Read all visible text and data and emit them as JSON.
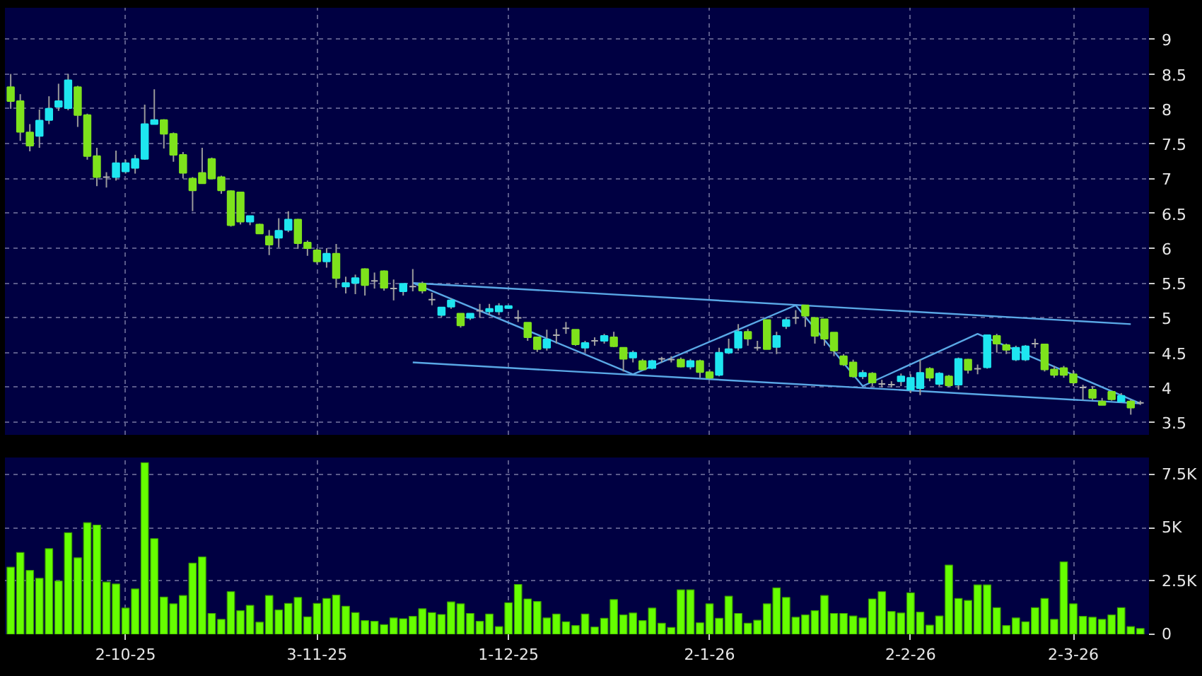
{
  "chart_data": [
    {
      "type": "candlestick",
      "categories": [
        null,
        null,
        null,
        null,
        null,
        null,
        null,
        null,
        null,
        null,
        null,
        null,
        null,
        null,
        null,
        null,
        null,
        null,
        null,
        null,
        null,
        null,
        null,
        null,
        null,
        null,
        null,
        null,
        null,
        null,
        null,
        null,
        null,
        null,
        null,
        null,
        null,
        null,
        null,
        null,
        null,
        null,
        null,
        null,
        null,
        null,
        null,
        null,
        null,
        null,
        null,
        null,
        null,
        null,
        null,
        null,
        null,
        null,
        null,
        null,
        null,
        null,
        null,
        null,
        null,
        null,
        null,
        null,
        null,
        null,
        null,
        null,
        null,
        null,
        null,
        null,
        null,
        null,
        null,
        null,
        null,
        null,
        null,
        null,
        null,
        null,
        null,
        null,
        null,
        null,
        null,
        null,
        null,
        null,
        null,
        null,
        null,
        null,
        null,
        null,
        null,
        null,
        null,
        null,
        null,
        null,
        null,
        null,
        null,
        null,
        null,
        null,
        null,
        null,
        null,
        null,
        null,
        null,
        null
      ],
      "ohlc": [
        [
          8.31,
          8.5,
          8.0,
          8.11
        ],
        [
          8.11,
          8.21,
          7.54,
          7.67
        ],
        [
          7.66,
          7.78,
          7.39,
          7.47
        ],
        [
          7.61,
          7.99,
          7.44,
          7.83
        ],
        [
          7.84,
          8.18,
          7.78,
          8.0
        ],
        [
          8.03,
          8.36,
          7.97,
          8.11
        ],
        [
          8.01,
          8.5,
          7.98,
          8.41
        ],
        [
          8.31,
          8.33,
          7.74,
          7.91
        ],
        [
          7.91,
          7.93,
          7.27,
          7.32
        ],
        [
          7.32,
          7.44,
          6.89,
          7.02
        ],
        [
          7.02,
          7.09,
          6.87,
          7.02
        ],
        [
          7.02,
          7.4,
          6.97,
          7.22
        ],
        [
          7.1,
          7.27,
          7.07,
          7.22
        ],
        [
          7.15,
          7.34,
          7.07,
          7.28
        ],
        [
          7.28,
          8.06,
          7.27,
          7.78
        ],
        [
          7.78,
          8.28,
          7.78,
          7.84
        ],
        [
          7.84,
          7.85,
          7.43,
          7.64
        ],
        [
          7.64,
          7.66,
          7.24,
          7.34
        ],
        [
          7.34,
          7.38,
          7.0,
          7.08
        ],
        [
          7.0,
          7.02,
          6.53,
          6.83
        ],
        [
          7.08,
          7.44,
          6.93,
          6.93
        ],
        [
          7.28,
          7.3,
          7.0,
          7.0
        ],
        [
          7.02,
          7.04,
          6.78,
          6.83
        ],
        [
          6.82,
          6.83,
          6.31,
          6.33
        ],
        [
          6.8,
          6.81,
          6.34,
          6.38
        ],
        [
          6.38,
          6.46,
          6.33,
          6.46
        ],
        [
          6.34,
          6.35,
          6.21,
          6.21
        ],
        [
          6.17,
          6.26,
          5.9,
          6.05
        ],
        [
          6.15,
          6.43,
          6.01,
          6.25
        ],
        [
          6.26,
          6.53,
          6.23,
          6.41
        ],
        [
          6.41,
          6.42,
          5.99,
          6.07
        ],
        [
          6.08,
          6.11,
          5.89,
          6.0
        ],
        [
          5.97,
          6.0,
          5.77,
          5.81
        ],
        [
          5.81,
          6.0,
          5.72,
          5.92
        ],
        [
          5.92,
          6.06,
          5.43,
          5.57
        ],
        [
          5.45,
          5.59,
          5.35,
          5.5
        ],
        [
          5.5,
          5.62,
          5.34,
          5.57
        ],
        [
          5.7,
          5.71,
          5.32,
          5.47
        ],
        [
          5.53,
          5.65,
          5.42,
          5.53
        ],
        [
          5.67,
          5.68,
          5.39,
          5.43
        ],
        [
          5.42,
          5.55,
          5.25,
          5.42
        ],
        [
          5.38,
          5.49,
          5.32,
          5.49
        ],
        [
          5.45,
          5.7,
          5.38,
          5.45
        ],
        [
          5.49,
          5.52,
          5.35,
          5.39
        ],
        [
          5.26,
          5.36,
          5.18,
          5.26
        ],
        [
          5.04,
          5.15,
          5.01,
          5.15
        ],
        [
          5.16,
          5.28,
          5.13,
          5.25
        ],
        [
          5.06,
          5.06,
          4.86,
          4.89
        ],
        [
          5.0,
          5.06,
          4.97,
          5.06
        ],
        [
          5.1,
          5.2,
          5.0,
          5.1
        ],
        [
          5.09,
          5.2,
          5.04,
          5.13
        ],
        [
          5.09,
          5.21,
          5.04,
          5.17
        ],
        [
          5.14,
          5.17,
          5.13,
          5.17
        ],
        [
          5.0,
          5.11,
          4.94,
          5.0
        ],
        [
          4.93,
          4.93,
          4.67,
          4.72
        ],
        [
          4.72,
          4.72,
          4.51,
          4.55
        ],
        [
          4.57,
          4.83,
          4.53,
          4.69
        ],
        [
          4.75,
          4.84,
          4.63,
          4.75
        ],
        [
          4.85,
          4.94,
          4.77,
          4.85
        ],
        [
          4.83,
          4.83,
          4.6,
          4.62
        ],
        [
          4.57,
          4.67,
          4.51,
          4.64
        ],
        [
          4.67,
          4.72,
          4.6,
          4.67
        ],
        [
          4.67,
          4.77,
          4.63,
          4.74
        ],
        [
          4.72,
          4.8,
          4.58,
          4.59
        ],
        [
          4.57,
          4.57,
          4.23,
          4.41
        ],
        [
          4.43,
          4.53,
          4.36,
          4.5
        ],
        [
          4.38,
          4.41,
          4.25,
          4.26
        ],
        [
          4.28,
          4.4,
          4.26,
          4.38
        ],
        [
          4.41,
          4.44,
          4.36,
          4.41
        ],
        [
          4.4,
          4.45,
          4.36,
          4.4
        ],
        [
          4.4,
          4.43,
          4.29,
          4.3
        ],
        [
          4.3,
          4.41,
          4.26,
          4.38
        ],
        [
          4.38,
          4.4,
          4.14,
          4.22
        ],
        [
          4.22,
          4.26,
          4.12,
          4.14
        ],
        [
          4.18,
          4.57,
          4.16,
          4.5
        ],
        [
          4.5,
          4.7,
          4.48,
          4.55
        ],
        [
          4.57,
          4.91,
          4.53,
          4.8
        ],
        [
          4.8,
          4.84,
          4.6,
          4.7
        ],
        [
          4.57,
          4.67,
          4.53,
          4.57
        ],
        [
          4.97,
          4.97,
          4.55,
          4.55
        ],
        [
          4.58,
          4.8,
          4.48,
          4.74
        ],
        [
          4.88,
          5.0,
          4.84,
          4.97
        ],
        [
          5.0,
          5.11,
          4.91,
          5.0
        ],
        [
          5.18,
          5.18,
          4.87,
          5.03
        ],
        [
          5.0,
          5.0,
          4.63,
          4.74
        ],
        [
          4.98,
          4.98,
          4.6,
          4.7
        ],
        [
          4.79,
          4.79,
          4.45,
          4.53
        ],
        [
          4.45,
          4.48,
          4.31,
          4.33
        ],
        [
          4.36,
          4.4,
          4.14,
          4.16
        ],
        [
          4.16,
          4.25,
          4.12,
          4.21
        ],
        [
          4.2,
          4.22,
          4.02,
          4.07
        ],
        [
          4.05,
          4.11,
          4.0,
          4.05
        ],
        [
          4.04,
          4.09,
          4.0,
          4.04
        ],
        [
          4.09,
          4.2,
          4.02,
          4.16
        ],
        [
          3.97,
          4.19,
          3.92,
          4.14
        ],
        [
          3.99,
          4.4,
          3.89,
          4.21
        ],
        [
          4.27,
          4.29,
          4.09,
          4.14
        ],
        [
          4.05,
          4.22,
          4.02,
          4.2
        ],
        [
          4.16,
          4.18,
          4.0,
          4.03
        ],
        [
          4.04,
          4.43,
          3.97,
          4.41
        ],
        [
          4.4,
          4.41,
          4.2,
          4.25
        ],
        [
          4.27,
          4.33,
          4.19,
          4.27
        ],
        [
          4.29,
          4.75,
          4.27,
          4.75
        ],
        [
          4.74,
          4.77,
          4.5,
          4.63
        ],
        [
          4.61,
          4.63,
          4.48,
          4.54
        ],
        [
          4.4,
          4.6,
          4.38,
          4.57
        ],
        [
          4.4,
          4.61,
          4.38,
          4.59
        ],
        [
          4.63,
          4.7,
          4.57,
          4.63
        ],
        [
          4.62,
          4.62,
          4.23,
          4.26
        ],
        [
          4.26,
          4.31,
          4.14,
          4.18
        ],
        [
          4.28,
          4.31,
          4.14,
          4.18
        ],
        [
          4.19,
          4.25,
          4.02,
          4.07
        ],
        [
          4.0,
          4.04,
          3.82,
          4.0
        ],
        [
          3.97,
          4.02,
          3.82,
          3.85
        ],
        [
          3.8,
          3.85,
          3.75,
          3.75
        ],
        [
          3.94,
          3.95,
          3.81,
          3.83
        ],
        [
          3.8,
          3.92,
          3.78,
          3.88
        ],
        [
          3.8,
          3.83,
          3.61,
          3.71
        ],
        [
          3.78,
          3.81,
          3.75,
          3.78
        ]
      ],
      "colors": [
        "#7ee21c",
        "#7ee21c",
        "#7ee21c",
        "#1ee6f0",
        "#1ee6f0",
        "#1ee6f0",
        "#1ee6f0",
        "#7ee21c",
        "#7ee21c",
        "#7ee21c",
        "#b0b0b0",
        "#1ee6f0",
        "#1ee6f0",
        "#1ee6f0",
        "#1ee6f0",
        "#1ee6f0",
        "#7ee21c",
        "#7ee21c",
        "#7ee21c",
        "#7ee21c",
        "#7ee21c",
        "#7ee21c",
        "#7ee21c",
        "#7ee21c",
        "#7ee21c",
        "#1ee6f0",
        "#7ee21c",
        "#7ee21c",
        "#1ee6f0",
        "#1ee6f0",
        "#7ee21c",
        "#7ee21c",
        "#7ee21c",
        "#1ee6f0",
        "#7ee21c",
        "#1ee6f0",
        "#1ee6f0",
        "#7ee21c",
        "#b0b0b0",
        "#7ee21c",
        "#b0b0b0",
        "#1ee6f0",
        "#b0b0b0",
        "#7ee21c",
        "#b0b0b0",
        "#1ee6f0",
        "#1ee6f0",
        "#7ee21c",
        "#1ee6f0",
        "#b0b0b0",
        "#1ee6f0",
        "#1ee6f0",
        "#1ee6f0",
        "#b0b0b0",
        "#7ee21c",
        "#7ee21c",
        "#1ee6f0",
        "#b0b0b0",
        "#b0b0b0",
        "#7ee21c",
        "#1ee6f0",
        "#b0b0b0",
        "#1ee6f0",
        "#7ee21c",
        "#7ee21c",
        "#1ee6f0",
        "#7ee21c",
        "#1ee6f0",
        "#b0b0b0",
        "#b0b0b0",
        "#7ee21c",
        "#1ee6f0",
        "#7ee21c",
        "#7ee21c",
        "#1ee6f0",
        "#1ee6f0",
        "#1ee6f0",
        "#7ee21c",
        "#b0b0b0",
        "#7ee21c",
        "#1ee6f0",
        "#1ee6f0",
        "#b0b0b0",
        "#7ee21c",
        "#7ee21c",
        "#7ee21c",
        "#7ee21c",
        "#7ee21c",
        "#7ee21c",
        "#1ee6f0",
        "#7ee21c",
        "#b0b0b0",
        "#b0b0b0",
        "#1ee6f0",
        "#1ee6f0",
        "#1ee6f0",
        "#7ee21c",
        "#1ee6f0",
        "#7ee21c",
        "#1ee6f0",
        "#7ee21c",
        "#b0b0b0",
        "#1ee6f0",
        "#7ee21c",
        "#7ee21c",
        "#1ee6f0",
        "#1ee6f0",
        "#b0b0b0",
        "#7ee21c",
        "#7ee21c",
        "#7ee21c",
        "#7ee21c",
        "#b0b0b0",
        "#7ee21c",
        "#7ee21c",
        "#7ee21c",
        "#1ee6f0",
        "#7ee21c",
        "#b0b0b0"
      ],
      "series": [
        {
          "type": "line",
          "color": "#5aa8e6",
          "values": [
            null,
            null,
            null,
            null,
            null,
            null,
            null,
            null,
            null,
            null,
            null,
            null,
            null,
            null,
            null,
            null,
            null,
            null,
            null,
            null,
            null,
            null,
            null,
            null,
            null,
            null,
            null,
            null,
            null,
            null,
            null,
            null,
            null,
            null,
            null,
            null,
            null,
            null,
            null,
            null,
            null,
            null,
            5.5,
            null,
            null,
            null,
            null,
            null,
            null,
            null,
            null,
            null,
            null,
            null,
            null,
            null,
            null,
            null,
            null,
            null,
            null,
            null,
            null,
            null,
            null,
            null,
            null,
            null,
            null,
            null,
            null,
            null,
            null,
            null,
            null,
            null,
            null,
            null,
            null,
            null,
            null,
            null,
            null,
            null,
            null,
            null,
            null,
            null,
            null,
            null,
            null,
            null,
            null,
            null,
            null,
            null,
            null,
            null,
            null,
            null,
            null,
            null,
            null,
            null,
            null,
            null,
            null,
            null,
            null,
            null,
            null,
            null,
            null,
            null,
            null,
            null,
            null,
            4.91,
            null
          ]
        },
        {
          "type": "line",
          "color": "#5aa8e6",
          "values": [
            null,
            null,
            null,
            null,
            null,
            null,
            null,
            null,
            null,
            null,
            null,
            null,
            null,
            null,
            null,
            null,
            null,
            null,
            null,
            null,
            null,
            null,
            null,
            null,
            null,
            null,
            null,
            null,
            null,
            null,
            null,
            null,
            null,
            null,
            null,
            null,
            null,
            null,
            null,
            null,
            null,
            null,
            4.36,
            null,
            null,
            null,
            null,
            null,
            null,
            null,
            null,
            null,
            null,
            null,
            null,
            null,
            null,
            null,
            null,
            null,
            null,
            null,
            null,
            null,
            null,
            null,
            null,
            null,
            null,
            null,
            null,
            null,
            null,
            null,
            null,
            null,
            null,
            null,
            null,
            null,
            null,
            null,
            null,
            null,
            null,
            null,
            null,
            null,
            null,
            null,
            null,
            null,
            null,
            null,
            null,
            null,
            null,
            null,
            null,
            null,
            null,
            null,
            null,
            null,
            null,
            null,
            null,
            null,
            null,
            null,
            null,
            null,
            null,
            null,
            null,
            null,
            null,
            null,
            3.77
          ]
        },
        {
          "type": "line",
          "color": "#5aa8e6",
          "values": [
            null,
            null,
            null,
            null,
            null,
            null,
            null,
            null,
            null,
            null,
            null,
            null,
            null,
            null,
            null,
            null,
            null,
            null,
            null,
            null,
            null,
            null,
            null,
            null,
            null,
            null,
            null,
            null,
            null,
            null,
            null,
            null,
            null,
            null,
            null,
            null,
            null,
            null,
            null,
            null,
            null,
            null,
            5.5,
            null,
            null,
            null,
            null,
            null,
            null,
            null,
            null,
            null,
            null,
            null,
            null,
            null,
            null,
            null,
            null,
            null,
            null,
            null,
            null,
            null,
            null,
            4.19,
            null,
            null,
            null,
            null,
            null,
            null,
            null,
            null,
            null,
            null,
            null,
            null,
            null,
            null,
            null,
            null,
            5.18,
            null,
            null,
            null,
            null,
            null,
            null,
            4.02,
            null,
            null,
            null,
            null,
            null,
            null,
            null,
            null,
            null,
            null,
            null,
            4.77,
            null,
            null,
            null,
            null,
            null,
            null,
            null,
            null,
            null,
            null,
            null,
            null,
            null,
            null,
            null,
            null,
            3.77
          ]
        }
      ],
      "ylim": [
        3.32,
        9.45
      ],
      "yticks": [
        3.5,
        4,
        4.5,
        5,
        5.5,
        6,
        6.5,
        7,
        7.5,
        8,
        8.5,
        9
      ],
      "grid": true,
      "tick_labels": "y"
    },
    {
      "type": "bar",
      "categories": [
        null,
        null,
        null,
        null,
        null,
        null,
        null,
        null,
        null,
        null,
        null,
        null,
        "2-10-25",
        null,
        null,
        null,
        null,
        null,
        null,
        null,
        null,
        null,
        null,
        null,
        null,
        null,
        null,
        null,
        null,
        null,
        null,
        null,
        "3-11-25",
        null,
        null,
        null,
        null,
        null,
        null,
        null,
        null,
        null,
        null,
        null,
        null,
        null,
        null,
        null,
        null,
        null,
        null,
        null,
        "1-12-25",
        null,
        null,
        null,
        null,
        null,
        null,
        null,
        null,
        null,
        null,
        null,
        null,
        null,
        null,
        null,
        null,
        null,
        null,
        null,
        null,
        "2-1-26",
        null,
        null,
        null,
        null,
        null,
        null,
        null,
        null,
        null,
        null,
        null,
        null,
        null,
        null,
        null,
        null,
        null,
        null,
        null,
        null,
        "2-2-26",
        null,
        null,
        null,
        null,
        null,
        null,
        null,
        null,
        null,
        null,
        null,
        null,
        null,
        null,
        null,
        null,
        "2-3-26",
        null,
        null,
        null,
        null,
        null,
        null,
        null
      ],
      "values": [
        3150,
        3840,
        3000,
        2630,
        4020,
        2500,
        4770,
        3590,
        5240,
        5130,
        2450,
        2360,
        1230,
        2130,
        8060,
        4490,
        1750,
        1430,
        1820,
        3340,
        3630,
        980,
        700,
        2000,
        1110,
        1360,
        570,
        1820,
        1140,
        1450,
        1730,
        820,
        1450,
        1680,
        1840,
        1320,
        1020,
        640,
        610,
        450,
        770,
        730,
        840,
        1200,
        1020,
        930,
        1520,
        1430,
        980,
        610,
        950,
        360,
        1480,
        2340,
        1660,
        1540,
        770,
        950,
        590,
        410,
        950,
        340,
        750,
        1630,
        910,
        1000,
        640,
        1230,
        520,
        320,
        2090,
        2090,
        540,
        1430,
        750,
        1790,
        980,
        520,
        660,
        1430,
        2180,
        1730,
        800,
        910,
        1110,
        1820,
        980,
        980,
        860,
        770,
        1660,
        2000,
        1070,
        1000,
        1950,
        1040,
        430,
        860,
        3250,
        1680,
        1590,
        2320,
        2320,
        1250,
        410,
        770,
        590,
        1250,
        1680,
        700,
        3400,
        1430,
        840,
        800,
        700,
        910,
        1250,
        360,
        270
      ],
      "color": "#66ff00",
      "ylim": [
        0,
        8300
      ],
      "yticks": [
        0,
        {
          "value": 2500,
          "label": "2.5K"
        },
        {
          "value": 5000,
          "label": "5K"
        },
        {
          "value": 7500,
          "label": "7.5K"
        }
      ],
      "grid": true
    }
  ]
}
